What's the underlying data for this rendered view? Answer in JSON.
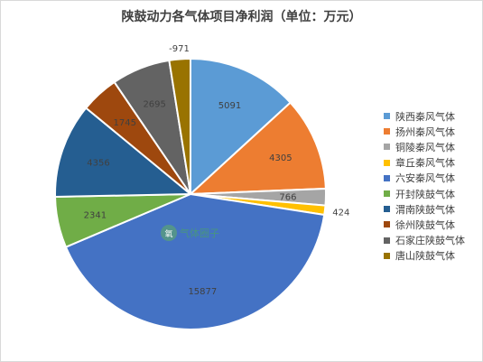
{
  "chart_data": {
    "type": "pie",
    "title": "陕鼓动力各气体项目净利润（单位：万元）",
    "slices": [
      {
        "label": "陕西秦风气体",
        "value": 5091,
        "display": "5091",
        "color": "#5b9bd5"
      },
      {
        "label": "扬州秦风气体",
        "value": 4305,
        "display": "4305",
        "color": "#ed7d31"
      },
      {
        "label": "铜陵秦风气体",
        "value": 766,
        "display": "766",
        "color": "#a5a5a5"
      },
      {
        "label": "章丘秦风气体",
        "value": 424,
        "display": "424",
        "color": "#ffc000"
      },
      {
        "label": "六安秦风气体",
        "value": 15877,
        "display": "15877",
        "color": "#4472c4"
      },
      {
        "label": "开封陕鼓气体",
        "value": 2341,
        "display": "2341",
        "color": "#70ad47"
      },
      {
        "label": "渭南陕鼓气体",
        "value": 4356,
        "display": "4356",
        "color": "#255e91"
      },
      {
        "label": "徐州陕鼓气体",
        "value": 1745,
        "display": "1745",
        "color": "#9e480e"
      },
      {
        "label": "石家庄陕鼓气体",
        "value": 2695,
        "display": "2695",
        "color": "#636363"
      },
      {
        "label": "唐山陕鼓气体",
        "value": 971,
        "display": "-971",
        "color": "#997300"
      }
    ],
    "legend_position": "right"
  },
  "watermark": {
    "text": "气体圈子"
  }
}
